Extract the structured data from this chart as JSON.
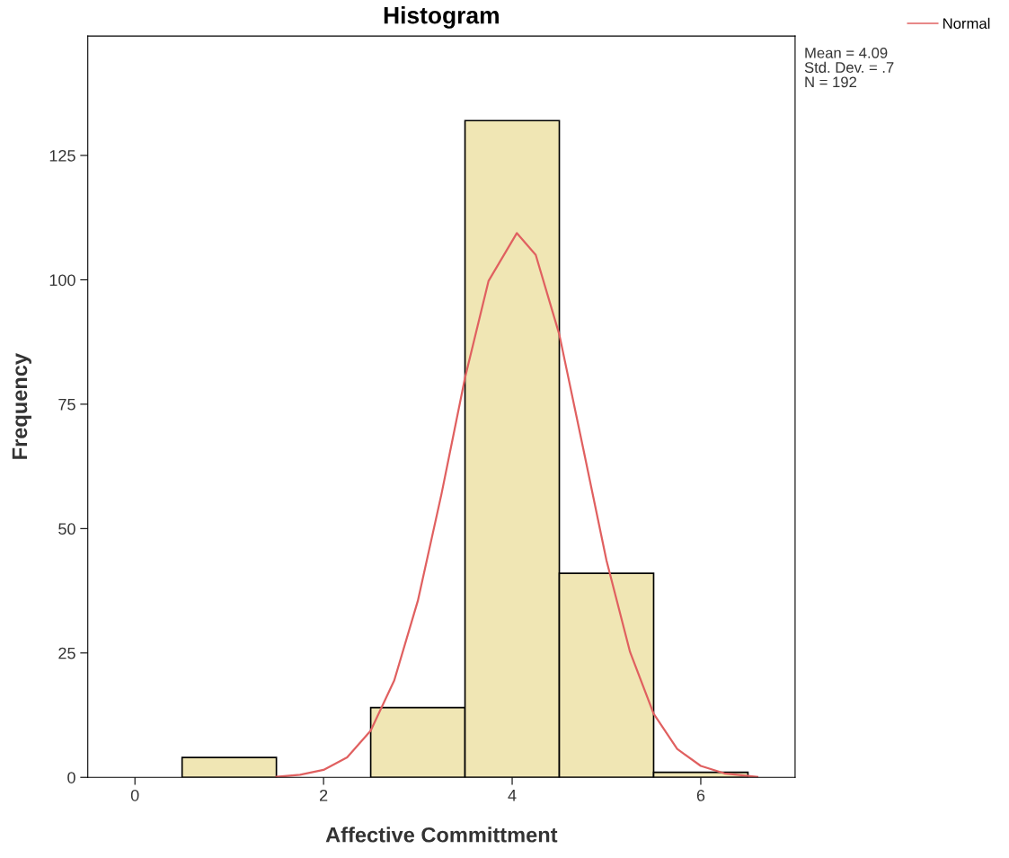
{
  "chart_data": {
    "type": "histogram",
    "title": "Histogram",
    "xlabel": "Affective Committment",
    "ylabel": "Frequency",
    "bins": [
      0.5,
      1.5,
      2.5,
      3.5,
      4.5,
      5.5,
      6.5
    ],
    "values": [
      4,
      0,
      14,
      132,
      41,
      1
    ],
    "color": "#f0e6b4",
    "series": [
      {
        "name": "Normal",
        "type": "line",
        "color": "#e06060",
        "x": [
          1.5,
          1.75,
          2.0,
          2.25,
          2.5,
          2.75,
          3.0,
          3.25,
          3.5,
          3.75,
          4.05,
          4.25,
          4.5,
          4.75,
          5.0,
          5.25,
          5.5,
          5.75,
          6.0,
          6.25,
          6.6
        ],
        "values": [
          0.1,
          0.5,
          1.5,
          4,
          9.4,
          19.5,
          35.5,
          56.9,
          80.3,
          99.8,
          109.4,
          105,
          89,
          66.4,
          43.6,
          25.2,
          12.8,
          5.7,
          2.3,
          0.8,
          0.1
        ]
      }
    ],
    "xlim": [
      -0.5,
      7.0
    ],
    "ylim": [
      0,
      149
    ],
    "xticks": [
      0,
      2,
      4,
      6
    ],
    "yticks": [
      0,
      25,
      50,
      75,
      100,
      125
    ],
    "legend": "top right",
    "grid": false,
    "annotations": [
      "Mean = 4.09",
      "Std. Dev. = .7",
      "N = 192"
    ]
  }
}
